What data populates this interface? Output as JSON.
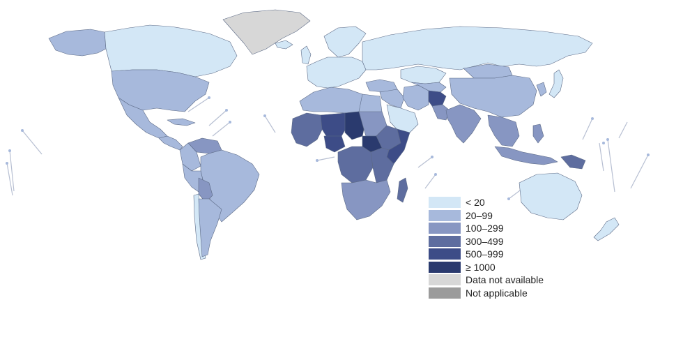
{
  "map": {
    "colors": {
      "lt20": "#d3e7f6",
      "c20_99": "#a7b9dc",
      "c100_299": "#8796c2",
      "c300_499": "#5e6d9f",
      "c500_999": "#3d4c87",
      "c1000": "#2a3a6e",
      "na": "#d7d7d7",
      "notapp": "#9b9b9b",
      "border": "#5c6a86"
    },
    "regions": [
      {
        "id": "greenland",
        "name": "greenland",
        "color": "na"
      },
      {
        "id": "canada",
        "name": "canada",
        "color": "lt20"
      },
      {
        "id": "alaska",
        "name": "alaska",
        "color": "c20_99"
      },
      {
        "id": "usa",
        "name": "united-states",
        "color": "c20_99"
      },
      {
        "id": "mexico",
        "name": "mexico",
        "color": "c20_99"
      },
      {
        "id": "central-america",
        "name": "central-america",
        "color": "c20_99"
      },
      {
        "id": "cuba",
        "name": "cuba",
        "color": "c20_99"
      },
      {
        "id": "venezuela",
        "name": "venezuela",
        "color": "c100_299"
      },
      {
        "id": "colombia",
        "name": "colombia",
        "color": "c20_99"
      },
      {
        "id": "brazil",
        "name": "brazil",
        "color": "c20_99"
      },
      {
        "id": "peru",
        "name": "peru",
        "color": "c20_99"
      },
      {
        "id": "bolivia",
        "name": "bolivia",
        "color": "c100_299"
      },
      {
        "id": "argentina",
        "name": "argentina",
        "color": "c20_99"
      },
      {
        "id": "chile",
        "name": "chile",
        "color": "lt20"
      },
      {
        "id": "europe-west",
        "name": "western-europe",
        "color": "lt20"
      },
      {
        "id": "scandinavia",
        "name": "scandinavia",
        "color": "lt20"
      },
      {
        "id": "uk",
        "name": "united-kingdom",
        "color": "lt20"
      },
      {
        "id": "iceland",
        "name": "iceland",
        "color": "lt20"
      },
      {
        "id": "russia",
        "name": "russia",
        "color": "lt20"
      },
      {
        "id": "turkey",
        "name": "turkey",
        "color": "c20_99"
      },
      {
        "id": "middle-east",
        "name": "middle-east",
        "color": "c20_99"
      },
      {
        "id": "saudi",
        "name": "saudi-arabia",
        "color": "lt20"
      },
      {
        "id": "iran",
        "name": "iran",
        "color": "c20_99"
      },
      {
        "id": "afghanistan",
        "name": "afghanistan",
        "color": "c500_999"
      },
      {
        "id": "pakistan",
        "name": "pakistan",
        "color": "c100_299"
      },
      {
        "id": "india",
        "name": "india",
        "color": "c100_299"
      },
      {
        "id": "central-asia",
        "name": "central-asia",
        "color": "c20_99"
      },
      {
        "id": "china",
        "name": "china",
        "color": "c20_99"
      },
      {
        "id": "mongolia",
        "name": "mongolia",
        "color": "c20_99"
      },
      {
        "id": "southeast-asia",
        "name": "southeast-asia",
        "color": "c100_299"
      },
      {
        "id": "japan",
        "name": "japan",
        "color": "lt20"
      },
      {
        "id": "korea",
        "name": "korea",
        "color": "c20_99"
      },
      {
        "id": "indonesia",
        "name": "indonesia",
        "color": "c100_299"
      },
      {
        "id": "png",
        "name": "papua-new-guinea",
        "color": "c300_499"
      },
      {
        "id": "philippines",
        "name": "philippines",
        "color": "c100_299"
      },
      {
        "id": "australia",
        "name": "australia",
        "color": "lt20"
      },
      {
        "id": "new-zealand",
        "name": "new-zealand",
        "color": "lt20"
      },
      {
        "id": "north-africa",
        "name": "north-africa",
        "color": "c20_99"
      },
      {
        "id": "egypt",
        "name": "egypt",
        "color": "c20_99"
      },
      {
        "id": "west-africa",
        "name": "west-africa",
        "color": "c300_499"
      },
      {
        "id": "sahel",
        "name": "sahel",
        "color": "c500_999"
      },
      {
        "id": "chad",
        "name": "chad",
        "color": "c1000"
      },
      {
        "id": "nigeria",
        "name": "nigeria",
        "color": "c500_999"
      },
      {
        "id": "sudan",
        "name": "sudan",
        "color": "c100_299"
      },
      {
        "id": "south-sudan",
        "name": "south-sudan",
        "color": "c1000"
      },
      {
        "id": "ethiopia",
        "name": "ethiopia",
        "color": "c300_499"
      },
      {
        "id": "somalia",
        "name": "somalia",
        "color": "c500_999"
      },
      {
        "id": "central-africa",
        "name": "central-africa",
        "color": "c300_499"
      },
      {
        "id": "east-africa",
        "name": "east-africa",
        "color": "c300_499"
      },
      {
        "id": "southern-africa",
        "name": "southern-africa",
        "color": "c100_299"
      },
      {
        "id": "madagascar",
        "name": "madagascar",
        "color": "c300_499"
      },
      {
        "id": "kazakhstan",
        "name": "kazakhstan",
        "color": "lt20"
      }
    ]
  },
  "legend": {
    "items": [
      {
        "label": "< 20",
        "color": "#d3e7f6"
      },
      {
        "label": "20–99",
        "color": "#a7b9dc"
      },
      {
        "label": "100–299",
        "color": "#8796c2"
      },
      {
        "label": "300–499",
        "color": "#5e6d9f"
      },
      {
        "label": "500–999",
        "color": "#3d4c87"
      },
      {
        "label": "≥ 1000",
        "color": "#2a3a6e"
      },
      {
        "label": "Data not available",
        "color": "#d7d7d7"
      },
      {
        "label": "Not applicable",
        "color": "#9b9b9b"
      }
    ]
  }
}
